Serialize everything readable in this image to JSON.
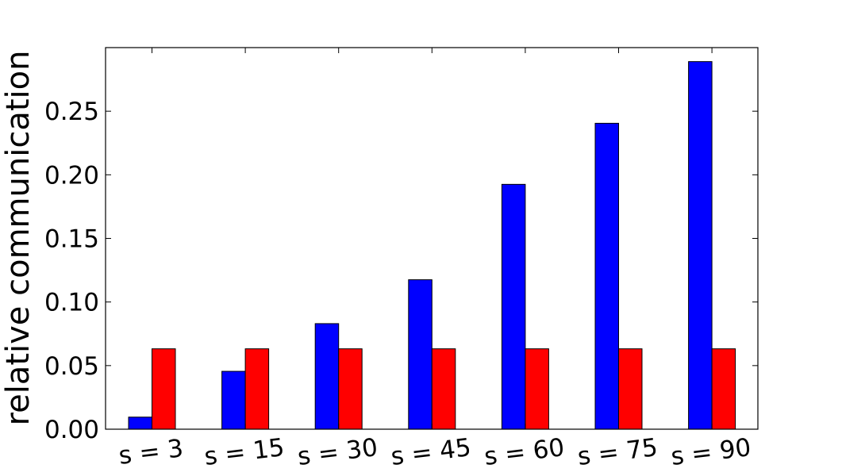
{
  "chart_data": {
    "type": "bar",
    "title": "",
    "xlabel": "",
    "ylabel": "relative communication",
    "categories": [
      "s = 3",
      "s = 15",
      "s = 30",
      "s = 45",
      "s = 60",
      "s = 75",
      "s = 90"
    ],
    "series": [
      {
        "color": "#0000ff",
        "values": [
          0.0095,
          0.0455,
          0.083,
          0.1175,
          0.1925,
          0.2405,
          0.289
        ]
      },
      {
        "color": "#ff0000",
        "values": [
          0.0632,
          0.0632,
          0.0632,
          0.0632,
          0.0632,
          0.0632,
          0.0632
        ]
      }
    ],
    "ylim": [
      0,
      0.3
    ],
    "yticks": [
      0.0,
      0.05,
      0.1,
      0.15,
      0.2,
      0.25
    ],
    "ytick_labels": [
      "0.00",
      "0.05",
      "0.10",
      "0.15",
      "0.20",
      "0.25"
    ],
    "grid": false,
    "legend": "none"
  }
}
